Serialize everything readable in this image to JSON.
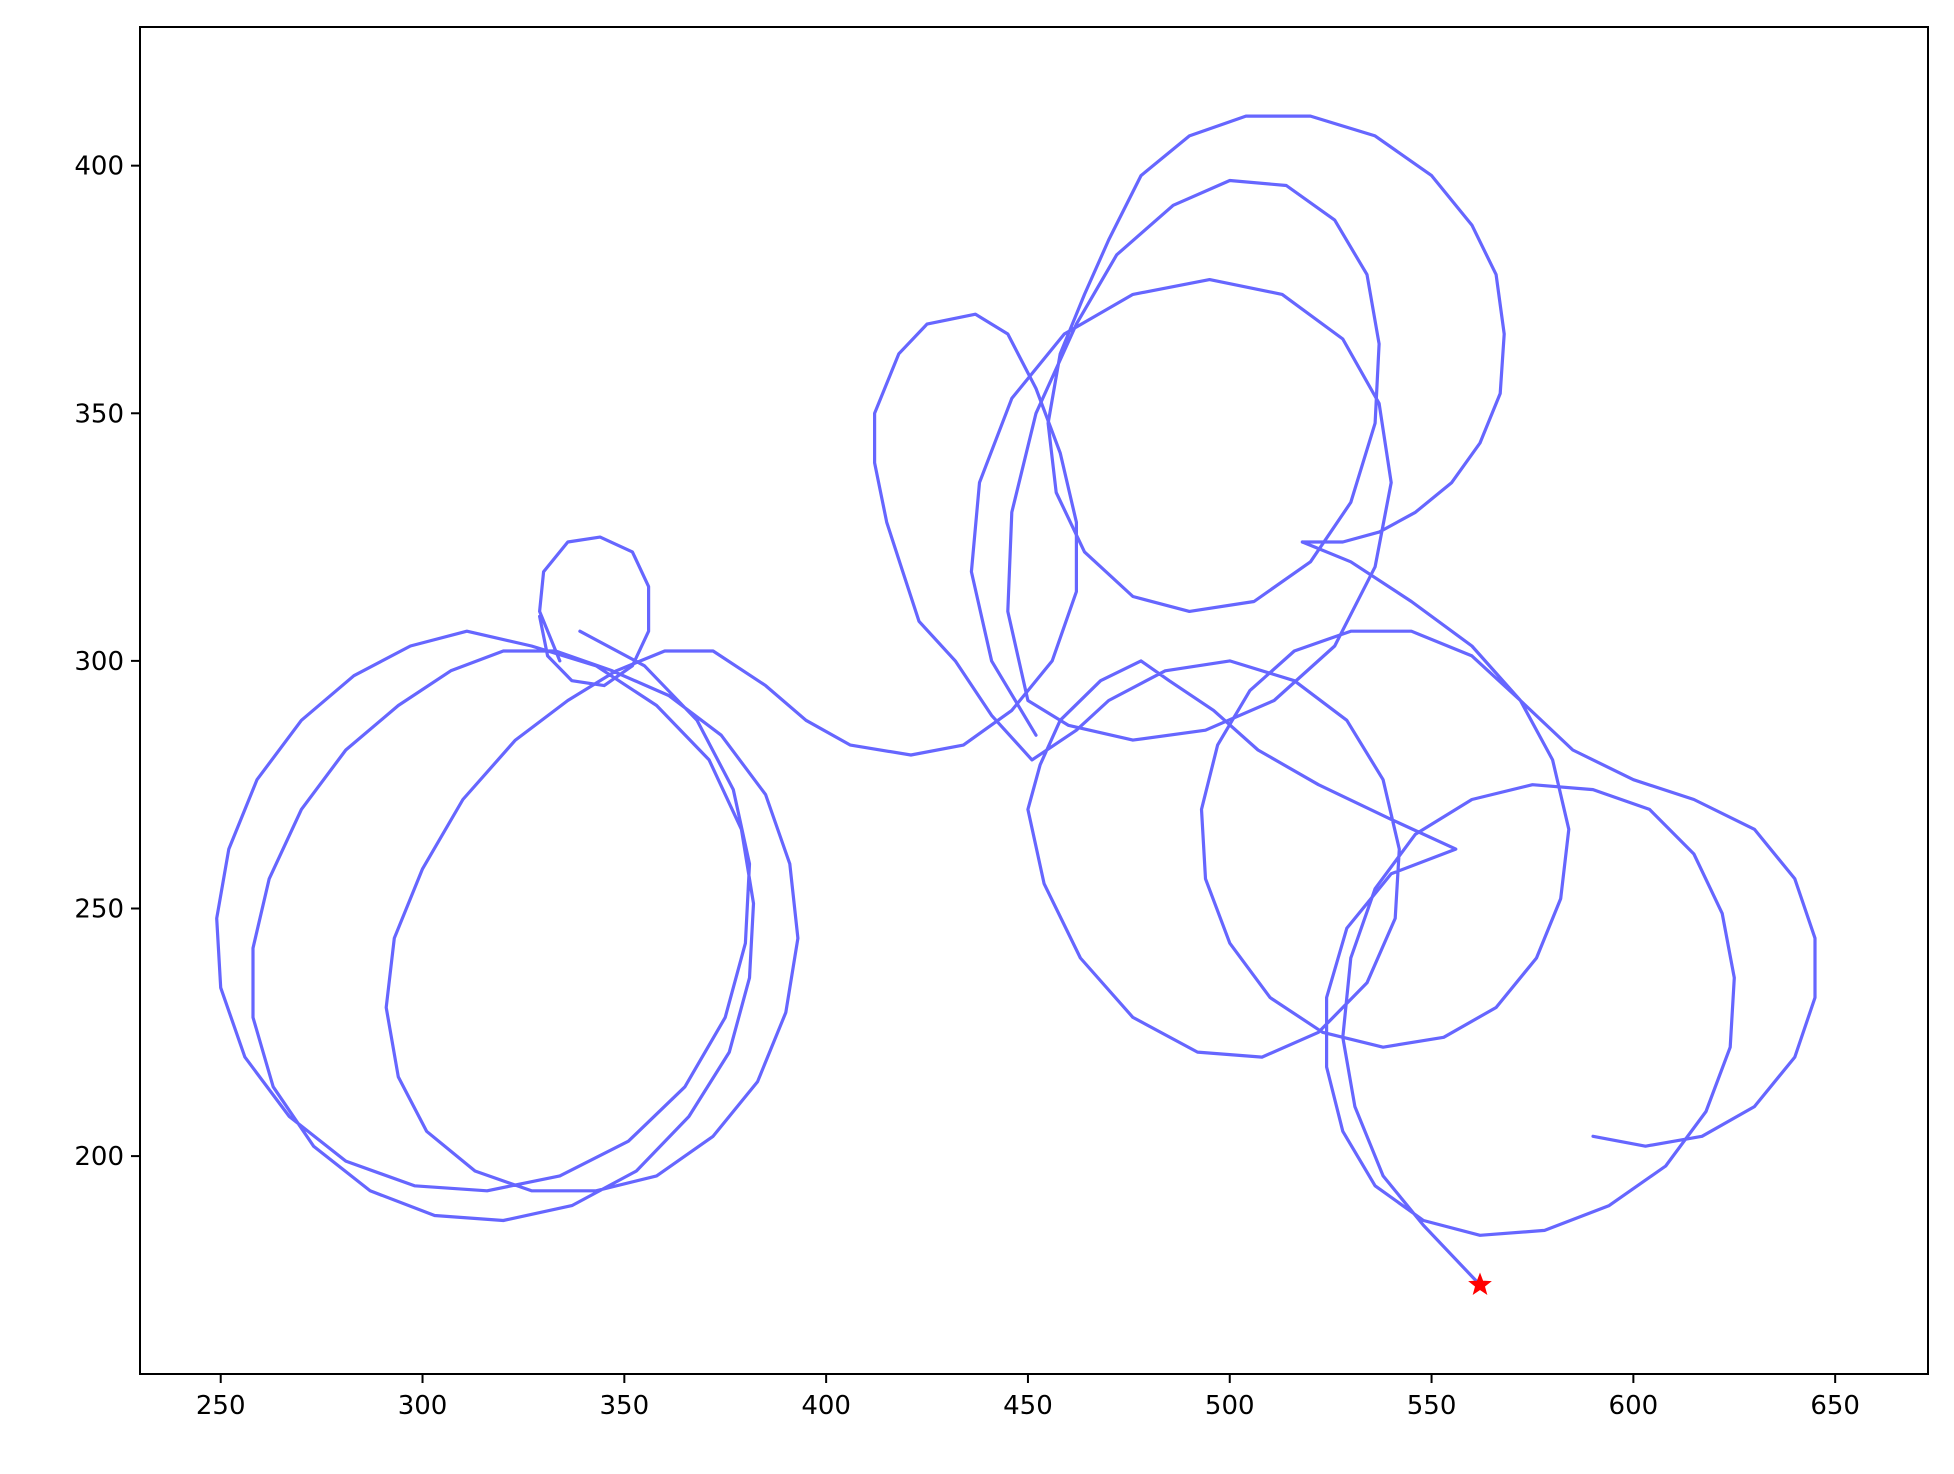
{
  "chart_data": {
    "type": "line",
    "title": "",
    "xlabel": "",
    "ylabel": "",
    "xlim": [
      230,
      673
    ],
    "ylim": [
      156,
      428
    ],
    "xticks": [
      250,
      300,
      350,
      400,
      450,
      500,
      550,
      600,
      650
    ],
    "yticks": [
      200,
      250,
      300,
      350,
      400
    ],
    "grid": false,
    "legend": "none",
    "colors": {
      "trajectory": "#6666ff",
      "marker": "#ff0000"
    },
    "series": [
      {
        "type": "line",
        "points": [
          [
            562,
            174
          ],
          [
            548,
            186
          ],
          [
            538,
            196
          ],
          [
            531,
            210
          ],
          [
            528,
            224
          ],
          [
            530,
            240
          ],
          [
            536,
            254
          ],
          [
            546,
            265
          ],
          [
            560,
            272
          ],
          [
            575,
            275
          ],
          [
            590,
            274
          ],
          [
            604,
            270
          ],
          [
            615,
            261
          ],
          [
            622,
            249
          ],
          [
            625,
            236
          ],
          [
            624,
            222
          ],
          [
            618,
            209
          ],
          [
            608,
            198
          ],
          [
            594,
            190
          ],
          [
            578,
            185
          ],
          [
            562,
            184
          ],
          [
            548,
            187
          ],
          [
            536,
            194
          ],
          [
            528,
            205
          ],
          [
            524,
            218
          ],
          [
            524,
            232
          ],
          [
            529,
            246
          ],
          [
            540,
            257
          ],
          [
            556,
            262
          ],
          [
            540,
            268
          ],
          [
            522,
            275
          ],
          [
            507,
            282
          ],
          [
            496,
            290
          ],
          [
            485,
            296
          ],
          [
            478,
            300
          ],
          [
            468,
            296
          ],
          [
            458,
            288
          ],
          [
            453,
            279
          ],
          [
            450,
            270
          ],
          [
            454,
            255
          ],
          [
            463,
            240
          ],
          [
            476,
            228
          ],
          [
            492,
            221
          ],
          [
            508,
            220
          ],
          [
            522,
            225
          ],
          [
            534,
            235
          ],
          [
            541,
            248
          ],
          [
            542,
            262
          ],
          [
            538,
            276
          ],
          [
            529,
            288
          ],
          [
            516,
            296
          ],
          [
            500,
            300
          ],
          [
            484,
            298
          ],
          [
            470,
            292
          ],
          [
            462,
            286
          ],
          [
            451,
            280
          ],
          [
            441,
            289
          ],
          [
            432,
            300
          ],
          [
            423,
            308
          ],
          [
            419,
            318
          ],
          [
            415,
            328
          ],
          [
            412,
            340
          ],
          [
            412,
            350
          ],
          [
            418,
            362
          ],
          [
            425,
            368
          ],
          [
            437,
            370
          ],
          [
            445,
            366
          ],
          [
            452,
            355
          ],
          [
            458,
            342
          ],
          [
            462,
            328
          ],
          [
            462,
            314
          ],
          [
            456,
            300
          ],
          [
            446,
            290
          ],
          [
            434,
            283
          ],
          [
            421,
            281
          ],
          [
            406,
            283
          ],
          [
            395,
            288
          ],
          [
            385,
            295
          ],
          [
            372,
            302
          ],
          [
            360,
            302
          ],
          [
            348,
            298
          ],
          [
            336,
            292
          ],
          [
            323,
            284
          ],
          [
            310,
            272
          ],
          [
            300,
            258
          ],
          [
            293,
            244
          ],
          [
            291,
            230
          ],
          [
            294,
            216
          ],
          [
            301,
            205
          ],
          [
            313,
            197
          ],
          [
            327,
            193
          ],
          [
            343,
            193
          ],
          [
            358,
            196
          ],
          [
            372,
            204
          ],
          [
            383,
            215
          ],
          [
            390,
            229
          ],
          [
            393,
            244
          ],
          [
            391,
            259
          ],
          [
            385,
            273
          ],
          [
            374,
            285
          ],
          [
            361,
            293
          ],
          [
            347,
            298
          ],
          [
            333,
            302
          ],
          [
            320,
            302
          ],
          [
            307,
            298
          ],
          [
            294,
            291
          ],
          [
            281,
            282
          ],
          [
            270,
            270
          ],
          [
            262,
            256
          ],
          [
            258,
            242
          ],
          [
            258,
            228
          ],
          [
            263,
            214
          ],
          [
            273,
            202
          ],
          [
            287,
            193
          ],
          [
            303,
            188
          ],
          [
            320,
            187
          ],
          [
            337,
            190
          ],
          [
            353,
            197
          ],
          [
            366,
            208
          ],
          [
            376,
            221
          ],
          [
            381,
            236
          ],
          [
            382,
            251
          ],
          [
            379,
            266
          ],
          [
            371,
            280
          ],
          [
            358,
            291
          ],
          [
            343,
            299
          ],
          [
            327,
            303
          ],
          [
            311,
            306
          ],
          [
            297,
            303
          ],
          [
            283,
            297
          ],
          [
            270,
            288
          ],
          [
            259,
            276
          ],
          [
            252,
            262
          ],
          [
            249,
            248
          ],
          [
            250,
            234
          ],
          [
            256,
            220
          ],
          [
            267,
            208
          ],
          [
            281,
            199
          ],
          [
            298,
            194
          ],
          [
            316,
            193
          ],
          [
            334,
            196
          ],
          [
            351,
            203
          ],
          [
            365,
            214
          ],
          [
            375,
            228
          ],
          [
            380,
            243
          ],
          [
            381,
            259
          ],
          [
            377,
            274
          ],
          [
            368,
            288
          ],
          [
            355,
            299
          ],
          [
            339,
            306
          ]
        ]
      },
      {
        "type": "line",
        "points": [
          [
            334,
            300
          ],
          [
            329,
            310
          ],
          [
            330,
            318
          ],
          [
            336,
            324
          ],
          [
            344,
            325
          ],
          [
            352,
            322
          ],
          [
            356,
            315
          ],
          [
            356,
            306
          ],
          [
            352,
            299
          ],
          [
            345,
            295
          ],
          [
            337,
            296
          ],
          [
            331,
            301
          ],
          [
            329,
            309
          ]
        ]
      },
      {
        "type": "line",
        "points": [
          [
            452,
            285
          ],
          [
            441,
            300
          ],
          [
            436,
            318
          ],
          [
            438,
            336
          ],
          [
            446,
            353
          ],
          [
            459,
            366
          ],
          [
            476,
            374
          ],
          [
            495,
            377
          ],
          [
            513,
            374
          ],
          [
            528,
            365
          ],
          [
            537,
            352
          ],
          [
            540,
            336
          ],
          [
            536,
            319
          ],
          [
            526,
            303
          ],
          [
            511,
            292
          ],
          [
            494,
            286
          ],
          [
            476,
            284
          ],
          [
            460,
            287
          ],
          [
            450,
            292
          ],
          [
            445,
            310
          ],
          [
            446,
            330
          ],
          [
            452,
            350
          ],
          [
            462,
            368
          ],
          [
            472,
            382
          ],
          [
            486,
            392
          ],
          [
            500,
            397
          ],
          [
            514,
            396
          ],
          [
            526,
            389
          ],
          [
            534,
            378
          ],
          [
            537,
            364
          ],
          [
            536,
            348
          ],
          [
            530,
            332
          ],
          [
            520,
            320
          ],
          [
            506,
            312
          ],
          [
            490,
            310
          ],
          [
            476,
            313
          ],
          [
            464,
            322
          ],
          [
            457,
            334
          ],
          [
            455,
            348
          ],
          [
            458,
            362
          ],
          [
            464,
            374
          ],
          [
            470,
            385
          ],
          [
            478,
            398
          ],
          [
            490,
            406
          ],
          [
            504,
            410
          ],
          [
            520,
            410
          ],
          [
            536,
            406
          ],
          [
            550,
            398
          ],
          [
            560,
            388
          ],
          [
            566,
            378
          ],
          [
            568,
            366
          ],
          [
            567,
            354
          ],
          [
            562,
            344
          ],
          [
            555,
            336
          ],
          [
            546,
            330
          ],
          [
            537,
            326
          ],
          [
            528,
            324
          ],
          [
            518,
            324
          ]
        ]
      },
      {
        "type": "line",
        "points": [
          [
            518,
            324
          ],
          [
            530,
            320
          ],
          [
            545,
            312
          ],
          [
            560,
            303
          ],
          [
            572,
            292
          ],
          [
            580,
            280
          ],
          [
            584,
            266
          ],
          [
            582,
            252
          ],
          [
            576,
            240
          ],
          [
            566,
            230
          ],
          [
            553,
            224
          ],
          [
            538,
            222
          ],
          [
            523,
            225
          ],
          [
            510,
            232
          ],
          [
            500,
            243
          ],
          [
            494,
            256
          ],
          [
            493,
            270
          ],
          [
            497,
            283
          ],
          [
            505,
            294
          ],
          [
            516,
            302
          ],
          [
            530,
            306
          ],
          [
            545,
            306
          ],
          [
            560,
            301
          ],
          [
            572,
            292
          ],
          [
            585,
            282
          ],
          [
            600,
            276
          ],
          [
            615,
            272
          ],
          [
            630,
            266
          ],
          [
            640,
            256
          ],
          [
            645,
            244
          ],
          [
            645,
            232
          ],
          [
            640,
            220
          ],
          [
            630,
            210
          ],
          [
            617,
            204
          ],
          [
            603,
            202
          ],
          [
            590,
            204
          ]
        ]
      }
    ],
    "markers": [
      {
        "name": "",
        "x": 562,
        "y": 174,
        "symbol": "star"
      }
    ]
  }
}
